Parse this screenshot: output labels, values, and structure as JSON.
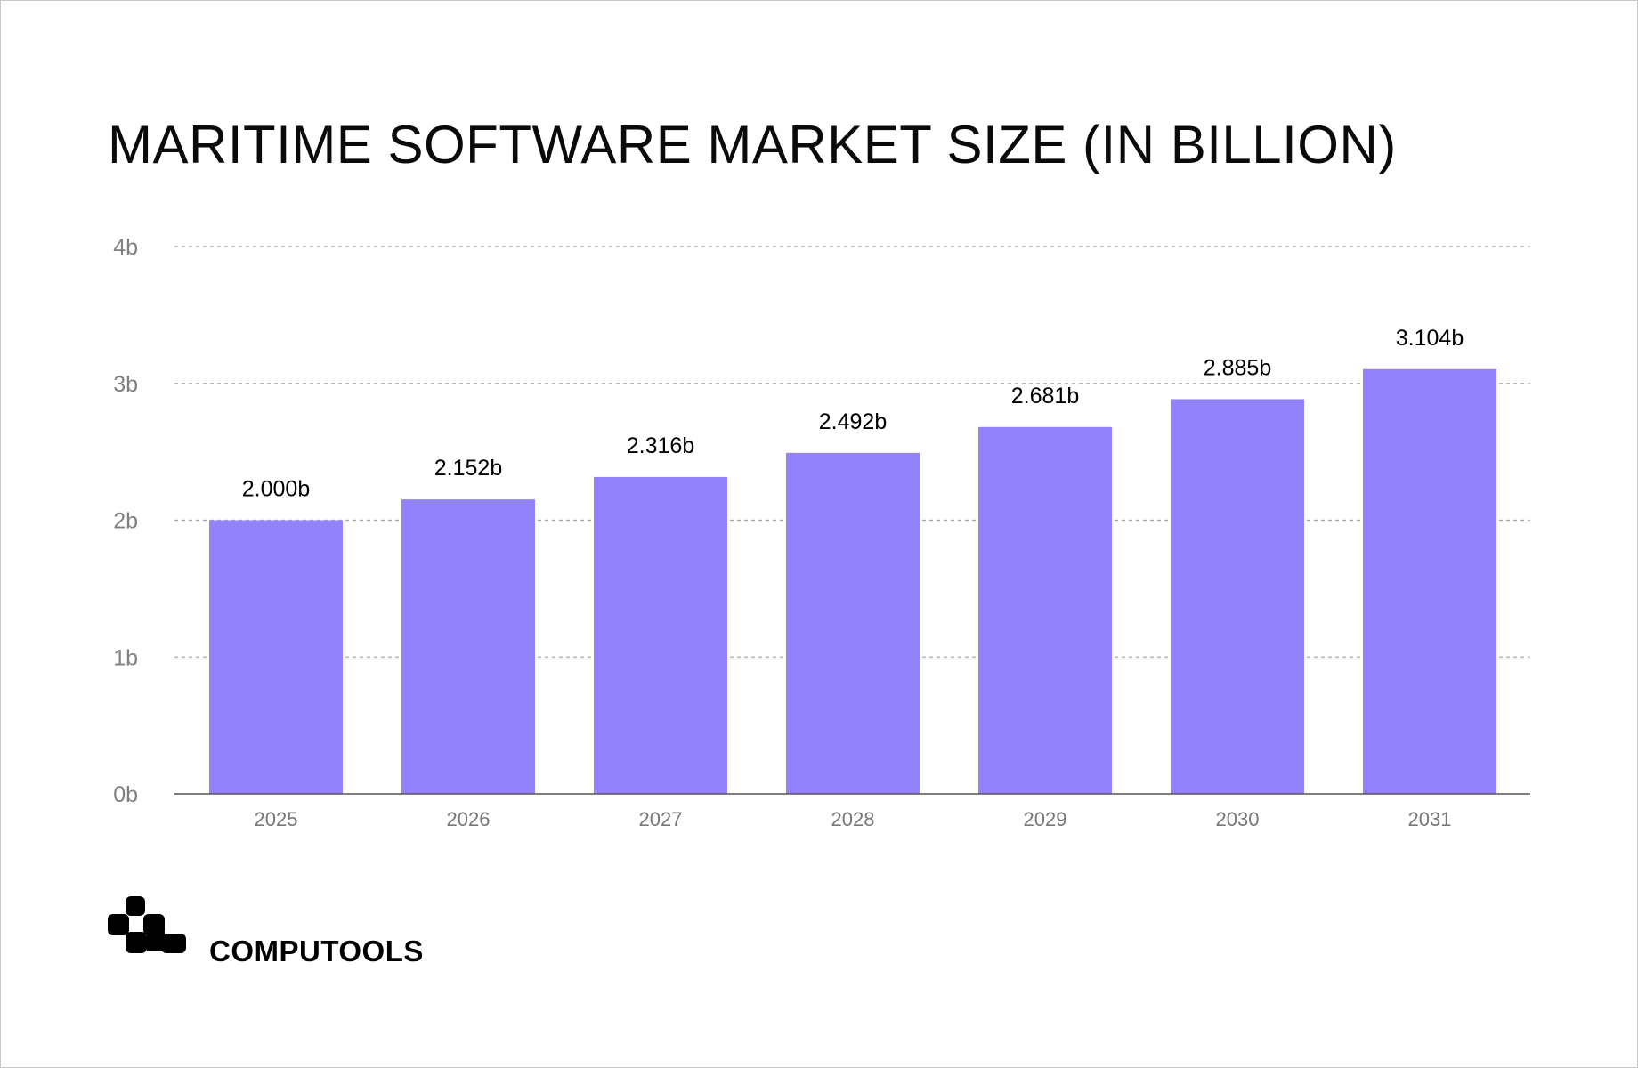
{
  "chart_data": {
    "type": "bar",
    "title": "MARITIME SOFTWARE MARKET SIZE (IN BILLION)",
    "categories": [
      "2025",
      "2026",
      "2027",
      "2028",
      "2029",
      "2030",
      "2031"
    ],
    "values": [
      2.0,
      2.152,
      2.316,
      2.492,
      2.681,
      2.885,
      3.104
    ],
    "data_labels": [
      "2.000b",
      "2.152b",
      "2.316b",
      "2.492b",
      "2.681b",
      "2.885b",
      "3.104b"
    ],
    "ylim": [
      0,
      4
    ],
    "yticks": [
      0,
      1,
      2,
      3,
      4
    ],
    "ytick_labels": [
      "0b",
      "1b",
      "2b",
      "3b",
      "4b"
    ],
    "xlabel": "",
    "ylabel": "",
    "grid": true,
    "bar_color": "#9283fc"
  },
  "brand": {
    "name": "COMPUTOOLS"
  }
}
